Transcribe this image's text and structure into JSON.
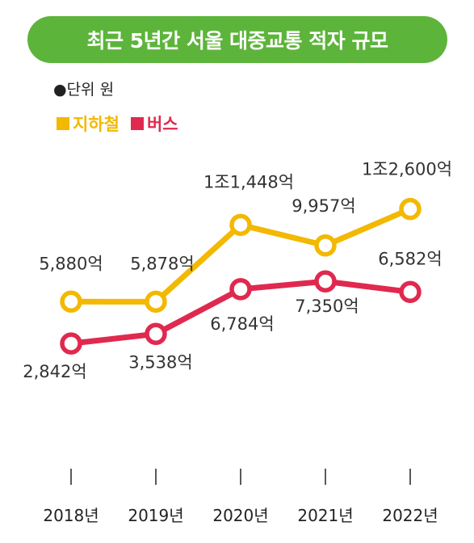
{
  "header": {
    "title": "최근 5년간 서울 대중교통 적자 규모"
  },
  "unit": {
    "text": "●단위 원"
  },
  "colors": {
    "title_bg": "#5db43a",
    "subway": "#f3b800",
    "bus": "#e0294f"
  },
  "chart_data": {
    "type": "line",
    "title": "최근 5년간 서울 대중교통 적자 규모",
    "unit_label": "●단위 원",
    "categories": [
      "2018년",
      "2019년",
      "2020년",
      "2021년",
      "2022년"
    ],
    "series": [
      {
        "name": "지하철",
        "values": [
          5880,
          5878,
          11448,
          9957,
          12600
        ],
        "labels": [
          "5,880억",
          "5,878억",
          "1조1,448억",
          "9,957억",
          "1조2,600억"
        ]
      },
      {
        "name": "버스",
        "values": [
          2842,
          3538,
          6784,
          7350,
          6582
        ],
        "labels": [
          "2,842억",
          "3,538억",
          "6,784억",
          "7,350억",
          "6,582억"
        ]
      }
    ],
    "legend_position": "top-left",
    "grid": false
  }
}
